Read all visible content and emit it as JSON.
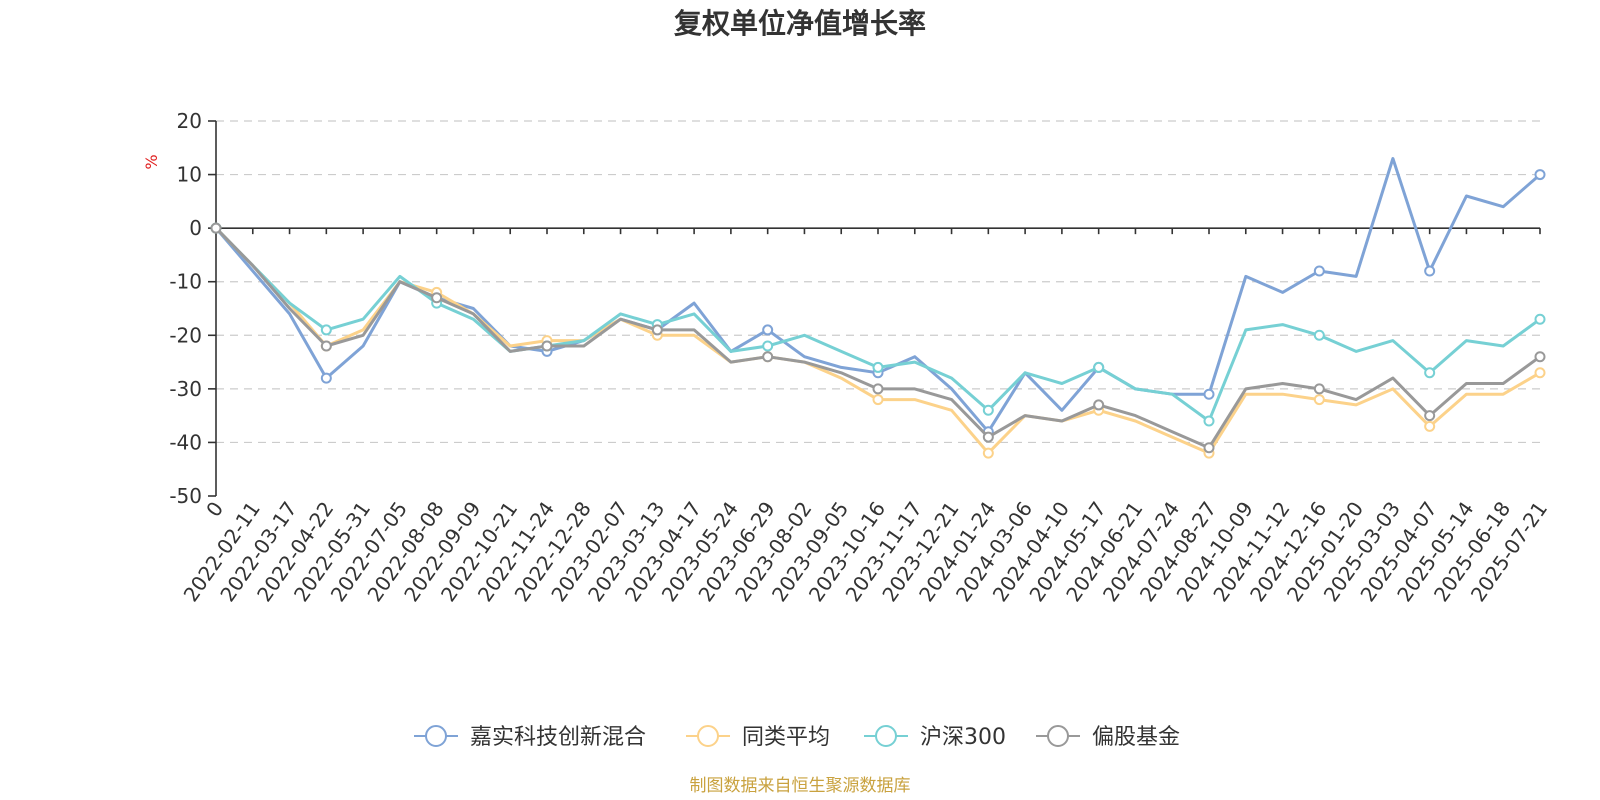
{
  "chart_data": {
    "type": "line",
    "title": "复权单位净值增长率",
    "ylabel": "%",
    "ylim": [
      -50,
      20
    ],
    "yticks": [
      20,
      10,
      0,
      -10,
      -20,
      -30,
      -40,
      -50
    ],
    "grid": true,
    "legend_position": "bottom-center",
    "source": "制图数据来自恒生聚源数据库",
    "x": [
      "0",
      "2022-02-11",
      "2022-03-17",
      "2022-04-22",
      "2022-05-31",
      "2022-07-05",
      "2022-08-08",
      "2022-09-09",
      "2022-10-21",
      "2022-11-24",
      "2022-12-28",
      "2023-02-07",
      "2023-03-13",
      "2023-04-17",
      "2023-05-24",
      "2023-06-29",
      "2023-08-02",
      "2023-09-05",
      "2023-10-16",
      "2023-11-17",
      "2023-12-21",
      "2024-01-24",
      "2024-03-06",
      "2024-04-10",
      "2024-05-17",
      "2024-06-21",
      "2024-07-24",
      "2024-08-27",
      "2024-10-09",
      "2024-11-12",
      "2024-12-16",
      "2025-01-20",
      "2025-03-03",
      "2025-04-07",
      "2025-05-14",
      "2025-06-18",
      "2025-07-21"
    ],
    "series": [
      {
        "name": "嘉实科技创新混合",
        "color": "#7fa3d6",
        "values": [
          0,
          -8,
          -16,
          -28,
          -22,
          -10,
          -13,
          -15,
          -22,
          -23,
          -21,
          -17,
          -19,
          -14,
          -23,
          -19,
          -24,
          -26,
          -27,
          -24,
          -30,
          -38,
          -27,
          -34,
          -26,
          -30,
          -31,
          -31,
          -9,
          -12,
          -8,
          -9,
          13,
          -8,
          6,
          4,
          10
        ]
      },
      {
        "name": "同类平均",
        "color": "#fcd28a",
        "values": [
          0,
          -7,
          -14,
          -22,
          -19,
          -10,
          -12,
          -16,
          -22,
          -21,
          -21,
          -17,
          -20,
          -20,
          -25,
          -24,
          -25,
          -28,
          -32,
          -32,
          -34,
          -42,
          -35,
          -36,
          -34,
          -36,
          -39,
          -42,
          -31,
          -31,
          -32,
          -33,
          -30,
          -37,
          -31,
          -31,
          -27
        ]
      },
      {
        "name": "沪深300",
        "color": "#76d0d4",
        "values": [
          0,
          -7,
          -14,
          -19,
          -17,
          -9,
          -14,
          -17,
          -23,
          -22,
          -21,
          -16,
          -18,
          -16,
          -23,
          -22,
          -20,
          -23,
          -26,
          -25,
          -28,
          -34,
          -27,
          -29,
          -26,
          -30,
          -31,
          -36,
          -19,
          -18,
          -20,
          -23,
          -21,
          -27,
          -21,
          -22,
          -17
        ]
      },
      {
        "name": "偏股基金",
        "color": "#999999",
        "values": [
          0,
          -7,
          -15,
          -22,
          -20,
          -10,
          -13,
          -16,
          -23,
          -22,
          -22,
          -17,
          -19,
          -19,
          -25,
          -24,
          -25,
          -27,
          -30,
          -30,
          -32,
          -39,
          -35,
          -36,
          -33,
          -35,
          -38,
          -41,
          -30,
          -29,
          -30,
          -32,
          -28,
          -35,
          -29,
          -29,
          -24
        ]
      }
    ]
  }
}
